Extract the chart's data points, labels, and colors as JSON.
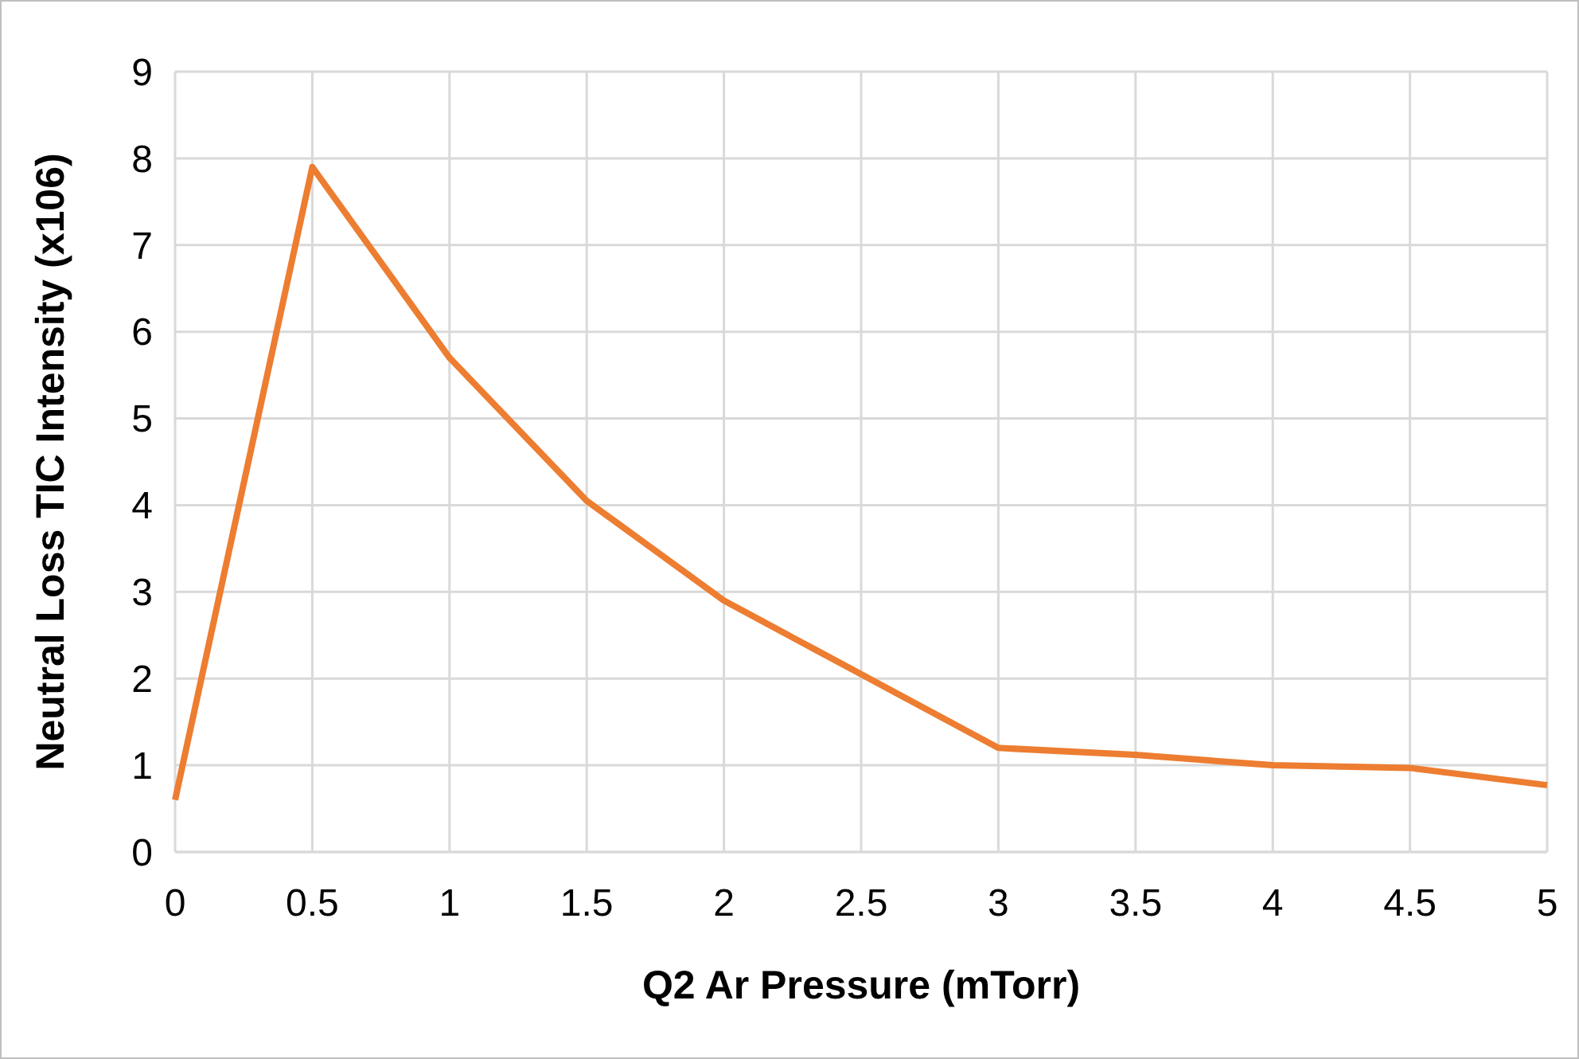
{
  "chart_data": {
    "type": "line",
    "xlabel": "Q2 Ar Pressure (mTorr)",
    "ylabel": "Neutral Loss TIC Intensity (x106)",
    "x": [
      0,
      0.5,
      1,
      1.5,
      2,
      2.5,
      3,
      3.5,
      4,
      4.5,
      5
    ],
    "series": [
      {
        "color": "#ed7d31",
        "values": [
          0.6,
          7.9,
          5.7,
          4.05,
          2.9,
          2.05,
          1.2,
          1.12,
          1.0,
          0.97,
          0.77
        ]
      }
    ],
    "xlim": [
      0,
      5
    ],
    "xticks": [
      0,
      0.5,
      1,
      1.5,
      2,
      2.5,
      3,
      3.5,
      4,
      4.5,
      5
    ],
    "ylim": [
      0,
      9
    ],
    "yticks": [
      0,
      1,
      2,
      3,
      4,
      5,
      6,
      7,
      8,
      9
    ],
    "grid": true,
    "marker": "none",
    "line_style": "solid"
  }
}
